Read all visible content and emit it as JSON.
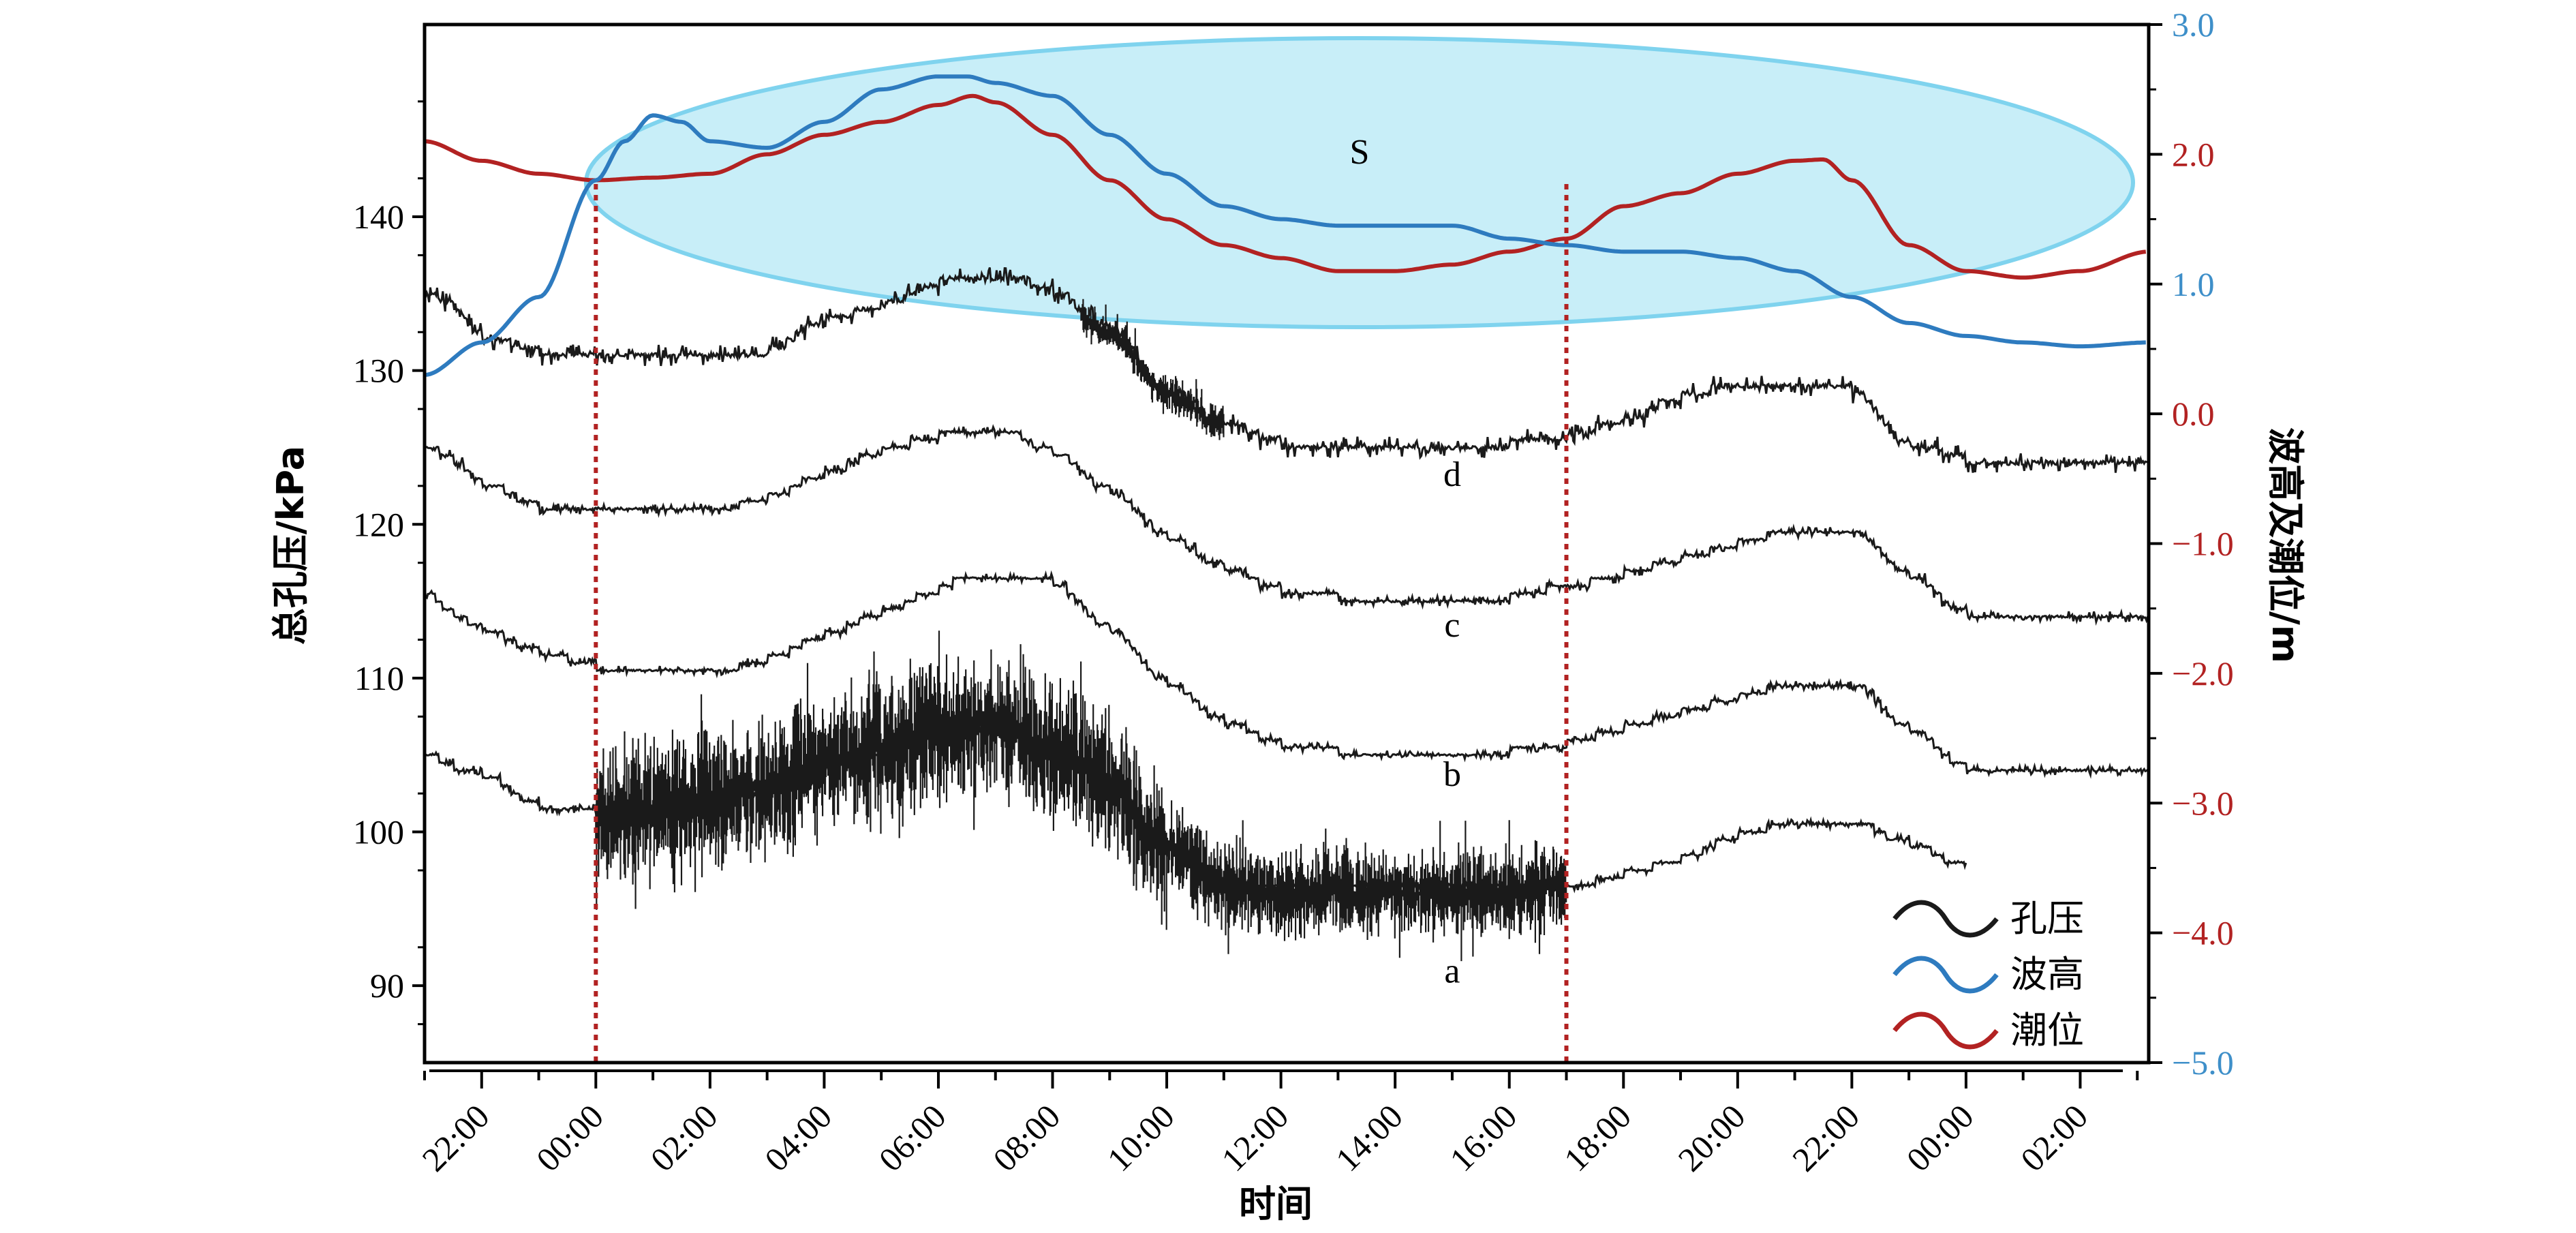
{
  "chart_data": {
    "type": "line",
    "xlabel": "时间",
    "ylabel_left": "总孔压/kPa",
    "ylabel_right": "波高及潮位/m",
    "x_ticks": [
      "22:00",
      "00:00",
      "02:00",
      "04:00",
      "06:00",
      "08:00",
      "10:00",
      "12:00",
      "14:00",
      "16:00",
      "18:00",
      "20:00",
      "22:00",
      "00:00",
      "02:00"
    ],
    "x_range_hours": [
      -3.0,
      27.2
    ],
    "y_left": {
      "ticks": [
        90,
        100,
        110,
        120,
        130,
        140
      ],
      "range": [
        85,
        152.5
      ]
    },
    "y_right": {
      "ticks": [
        "3.0",
        "2.0",
        "1.0",
        "0.0",
        "−1.0",
        "−2.0",
        "−3.0",
        "−4.0",
        "−5.0"
      ],
      "range": [
        -5.0,
        3.0
      ]
    },
    "tide_color": "#b22222",
    "wave_color": "#2e7bbf",
    "pressure_color": "#1a1a1a",
    "highlight_color": "#c8eef8",
    "annotation": "S",
    "vlines_hours": [
      0.0,
      17.0
    ],
    "legend": [
      {
        "name": "孔压",
        "color": "#1a1a1a"
      },
      {
        "name": "波高",
        "color": "#2e7bbf"
      },
      {
        "name": "潮位",
        "color": "#b22222"
      }
    ],
    "series": [
      {
        "name": "潮位",
        "axis": "right",
        "x": [
          -3.0,
          -2.0,
          -1.0,
          0.0,
          1.0,
          2.0,
          3.0,
          4.0,
          5.0,
          6.0,
          6.6,
          7.0,
          8.0,
          9.0,
          10.0,
          11.0,
          12.0,
          13.0,
          14.0,
          15.0,
          16.0,
          17.0,
          18.0,
          19.0,
          20.0,
          21.0,
          21.5,
          22.0,
          23.0,
          24.0,
          25.0,
          26.0,
          27.2
        ],
        "y": [
          2.1,
          1.95,
          1.85,
          1.8,
          1.82,
          1.85,
          2.0,
          2.15,
          2.25,
          2.38,
          2.45,
          2.4,
          2.15,
          1.8,
          1.5,
          1.3,
          1.2,
          1.1,
          1.1,
          1.15,
          1.25,
          1.35,
          1.6,
          1.7,
          1.85,
          1.95,
          1.96,
          1.8,
          1.3,
          1.1,
          1.05,
          1.1,
          1.25
        ]
      },
      {
        "name": "波高",
        "axis": "right",
        "x": [
          -3.0,
          -2.0,
          -1.0,
          0.0,
          0.5,
          1.0,
          1.5,
          2.0,
          3.0,
          4.0,
          5.0,
          6.0,
          6.5,
          7.0,
          8.0,
          9.0,
          10.0,
          11.0,
          12.0,
          13.0,
          14.0,
          15.0,
          16.0,
          17.0,
          18.0,
          19.0,
          20.0,
          21.0,
          22.0,
          23.0,
          24.0,
          25.0,
          26.0,
          27.2
        ],
        "y": [
          0.3,
          0.55,
          0.9,
          1.8,
          2.1,
          2.3,
          2.25,
          2.1,
          2.05,
          2.25,
          2.5,
          2.6,
          2.6,
          2.55,
          2.45,
          2.15,
          1.85,
          1.6,
          1.5,
          1.45,
          1.45,
          1.45,
          1.35,
          1.3,
          1.25,
          1.25,
          1.2,
          1.1,
          0.9,
          0.7,
          0.6,
          0.55,
          0.52,
          0.55
        ]
      },
      {
        "name": "d",
        "axis": "left",
        "noise": 0.7,
        "seed": 11,
        "x": [
          -3.0,
          -2.5,
          -2.0,
          -1.0,
          0.0,
          1.0,
          2.0,
          3.0,
          4.0,
          5.0,
          6.0,
          6.5,
          7.0,
          8.0,
          9.0,
          10.0,
          11.0,
          12.0,
          13.0,
          14.0,
          15.0,
          16.0,
          17.0,
          18.0,
          19.0,
          20.0,
          21.0,
          22.0,
          23.0,
          24.0,
          25.0,
          26.0,
          27.2
        ],
        "y": [
          135,
          134,
          132,
          131,
          130.5,
          130.5,
          130.5,
          131.5,
          133.5,
          134.5,
          136,
          136.5,
          136.5,
          135,
          132.5,
          128.5,
          126.5,
          125,
          124.5,
          124.5,
          125,
          125.5,
          126,
          127,
          128.5,
          129.5,
          129.5,
          128.5,
          125,
          124,
          123.5,
          123.5,
          124
        ]
      },
      {
        "name": "c",
        "axis": "left",
        "noise": 0.35,
        "seed": 23,
        "x": [
          -3.0,
          -2.5,
          -2.0,
          -1.0,
          0.0,
          1.0,
          2.0,
          3.0,
          4.0,
          5.0,
          6.0,
          6.5,
          7.0,
          8.0,
          9.0,
          10.0,
          11.0,
          12.0,
          13.0,
          14.0,
          15.0,
          16.0,
          17.0,
          18.0,
          19.0,
          20.0,
          21.0,
          22.0,
          23.0,
          24.0,
          25.0,
          26.0,
          27.2
        ],
        "y": [
          125,
          124,
          122.5,
          121,
          120.8,
          121,
          121,
          122,
          123.5,
          125,
          126,
          126.5,
          126.2,
          124.5,
          122,
          119,
          117,
          115.5,
          115,
          114.5,
          115,
          115.5,
          116.2,
          117,
          118,
          119,
          120,
          119.5,
          116.5,
          114,
          113.5,
          114,
          114.5
        ]
      },
      {
        "name": "b",
        "axis": "left",
        "noise": 0.3,
        "seed": 37,
        "x": [
          -3.0,
          -2.5,
          -2.0,
          -1.0,
          0.0,
          1.0,
          2.0,
          3.0,
          4.0,
          5.0,
          6.0,
          6.5,
          7.0,
          8.0,
          9.0,
          10.0,
          11.0,
          12.0,
          13.0,
          14.0,
          15.0,
          16.0,
          17.0,
          18.0,
          19.0,
          20.0,
          21.0,
          22.0,
          23.0,
          24.0,
          25.0,
          26.0,
          27.2
        ],
        "y": [
          115.5,
          114,
          113,
          111.5,
          110.5,
          110,
          110.5,
          111.5,
          113,
          114.5,
          116,
          117,
          117,
          116,
          113,
          109.5,
          107,
          105.5,
          105,
          104.5,
          105,
          105.5,
          106,
          107,
          108,
          109,
          110,
          109.5,
          106.5,
          104,
          103.5,
          104,
          104.5
        ]
      },
      {
        "name": "a",
        "axis": "left",
        "noise": 0.3,
        "seed": 51,
        "x": [
          -3.0,
          -2.5,
          -2.0,
          -1.0,
          0.0,
          1.0,
          2.0,
          3.0,
          4.0,
          5.0,
          6.0,
          7.0,
          8.0,
          9.0,
          10.0,
          11.0,
          12.0,
          13.0,
          14.0,
          15.0,
          16.0,
          17.0,
          18.0,
          19.0,
          20.0,
          21.0,
          22.0,
          23.0,
          24.0
        ],
        "y": [
          105,
          104,
          103.5,
          101.5,
          101,
          101.5,
          102,
          103,
          104.5,
          105.5,
          106.5,
          107,
          105.5,
          103,
          99,
          96.5,
          96,
          96,
          96,
          96,
          96,
          96.5,
          97.5,
          98.5,
          100,
          101,
          100.5,
          99,
          97.5
        ]
      }
    ],
    "spike_bands": [
      {
        "series": "a",
        "from": 0.0,
        "to": 10.0,
        "amplitude": 5.5,
        "spikes": 7,
        "seed": 77
      },
      {
        "series": "a",
        "from": 10.0,
        "to": 17.0,
        "amplitude": 3.5,
        "spikes": 5,
        "seed": 88
      },
      {
        "series": "d",
        "from": 8.5,
        "to": 11.0,
        "amplitude": 1.5,
        "spikes": 2,
        "seed": 99
      }
    ],
    "curve_labels": [
      {
        "text": "d",
        "x": 15.0,
        "y": 122.5
      },
      {
        "text": "c",
        "x": 15.0,
        "y": 112.7
      },
      {
        "text": "b",
        "x": 15.0,
        "y": 103.0
      },
      {
        "text": "a",
        "x": 15.0,
        "y": 90.2
      }
    ]
  }
}
